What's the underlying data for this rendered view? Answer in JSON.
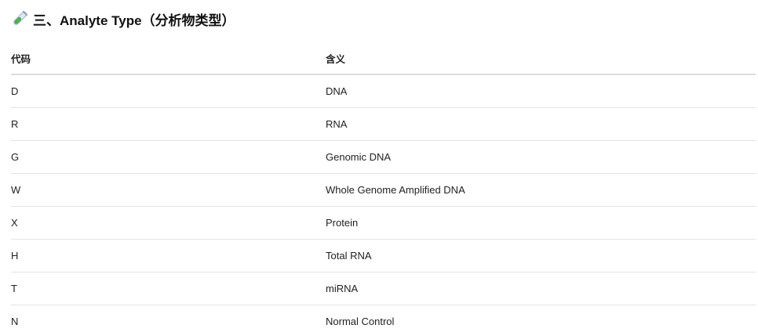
{
  "heading": {
    "icon": "test-tube-icon",
    "title": "三、Analyte Type（分析物类型）"
  },
  "table": {
    "columns": [
      "代码",
      "含义"
    ],
    "rows": [
      {
        "code": "D",
        "meaning": "DNA"
      },
      {
        "code": "R",
        "meaning": "RNA"
      },
      {
        "code": "G",
        "meaning": "Genomic DNA"
      },
      {
        "code": "W",
        "meaning": "Whole Genome Amplified DNA"
      },
      {
        "code": "X",
        "meaning": "Protein"
      },
      {
        "code": "H",
        "meaning": "Total RNA"
      },
      {
        "code": "T",
        "meaning": "miRNA"
      },
      {
        "code": "N",
        "meaning": "Normal Control"
      }
    ]
  },
  "colors": {
    "tube_glass": "#d9e4ec",
    "tube_liquid": "#4caf50",
    "divider": "#e3e3e3"
  }
}
